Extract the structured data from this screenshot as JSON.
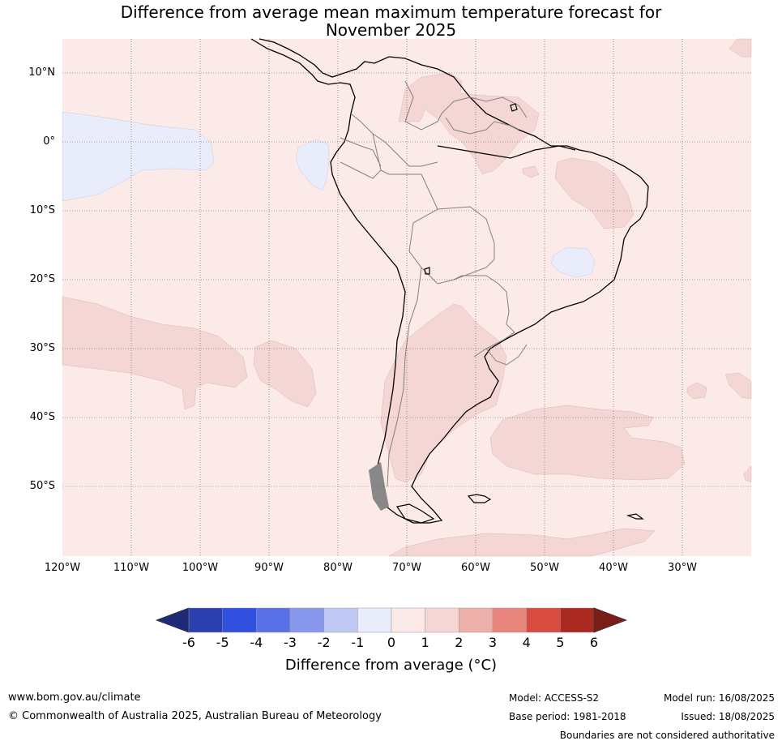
{
  "title_line1": "Difference from average mean maximum temperature forecast for",
  "title_line2": "November 2025",
  "lat_labels": [
    "10°N",
    "0°",
    "10°S",
    "20°S",
    "30°S",
    "40°S",
    "50°S"
  ],
  "lon_labels": [
    "120°W",
    "110°W",
    "100°W",
    "90°W",
    "80°W",
    "70°W",
    "60°W",
    "50°W",
    "40°W",
    "30°W"
  ],
  "colorbar": {
    "ticks": [
      "-6",
      "-5",
      "-4",
      "-3",
      "-2",
      "-1",
      "0",
      "1",
      "2",
      "3",
      "4",
      "5",
      "6"
    ],
    "colors": [
      "#2a3fb0",
      "#3050e0",
      "#5a70e6",
      "#8898ec",
      "#c0c8f4",
      "#e8ecfb",
      "#fbeae8",
      "#f4d6d4",
      "#ecafaa",
      "#e8867e",
      "#d94a40",
      "#aa2a22"
    ],
    "low_extend_color": "#1e2a78",
    "high_extend_color": "#7a1c18",
    "label": "Difference from average (°C)"
  },
  "legend_colors": {
    "background_anomaly": "#fbeae8",
    "warm_anomaly": "#f4d6d4",
    "cool_anomaly": "#e8ecfb"
  },
  "footer": {
    "website": "www.bom.gov.au/climate",
    "copyright": "© Commonwealth of Australia 2025, Australian Bureau of Meteorology",
    "model": "Model: ACCESS-S2",
    "base_period": "Base period: 1981-2018",
    "model_run": "Model run: 16/08/2025",
    "issued": "Issued: 18/08/2025",
    "disclaimer": "Boundaries are not considered authoritative"
  }
}
